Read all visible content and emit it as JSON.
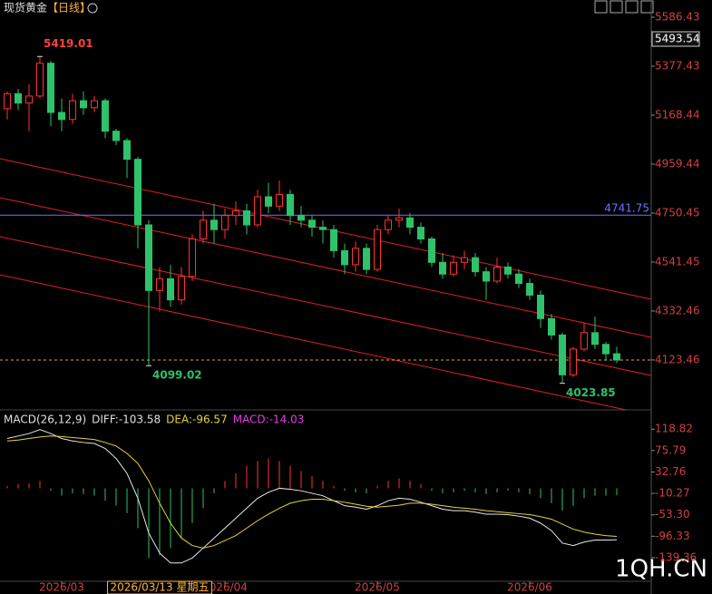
{
  "chart_data": [
    {
      "type": "candlestick",
      "title": "现货黄金",
      "period": "【日线】",
      "open": [
        5196,
        5260,
        5220,
        5250,
        5390,
        5180,
        5150,
        5230,
        5200,
        5230,
        5100,
        5060,
        4980,
        4700,
        4420,
        4470,
        4380,
        4480,
        4640,
        4720,
        4680,
        4740,
        4760,
        4700,
        4820,
        4780,
        4830,
        4740,
        4720,
        4690,
        4680,
        4590,
        4530,
        4600,
        4510,
        4680,
        4720,
        4730,
        4690,
        4640,
        4540,
        4490,
        4540,
        4560,
        4500,
        4460,
        4520,
        4490,
        4450,
        4400,
        4300,
        4230,
        4060,
        4170,
        4240,
        4190,
        4150
      ],
      "high": [
        5270,
        5280,
        5300,
        5419.01,
        5400,
        5240,
        5260,
        5270,
        5250,
        5240,
        5110,
        5070,
        4990,
        4720,
        4520,
        4530,
        4520,
        4660,
        4760,
        4790,
        4770,
        4800,
        4790,
        4850,
        4880,
        4890,
        4850,
        4780,
        4740,
        4720,
        4700,
        4620,
        4630,
        4620,
        4700,
        4740,
        4770,
        4750,
        4710,
        4650,
        4580,
        4570,
        4590,
        4580,
        4520,
        4560,
        4540,
        4510,
        4470,
        4420,
        4320,
        4240,
        4180,
        4280,
        4310,
        4200,
        4180
      ],
      "low": [
        5150,
        5190,
        5100,
        5240,
        5120,
        5100,
        5130,
        5170,
        5180,
        5070,
        5040,
        4900,
        4600,
        4099.02,
        4330,
        4350,
        4360,
        4460,
        4620,
        4620,
        4640,
        4700,
        4660,
        4690,
        4750,
        4760,
        4700,
        4690,
        4650,
        4620,
        4560,
        4490,
        4500,
        4490,
        4500,
        4660,
        4690,
        4660,
        4620,
        4520,
        4470,
        4480,
        4510,
        4480,
        4380,
        4450,
        4470,
        4430,
        4380,
        4260,
        4210,
        4023.85,
        4050,
        4160,
        4170,
        4120,
        4110
      ],
      "close": [
        5260,
        5220,
        5250,
        5390,
        5180,
        5150,
        5230,
        5200,
        5230,
        5100,
        5060,
        4980,
        4700,
        4420,
        4470,
        4380,
        4480,
        4640,
        4720,
        4680,
        4740,
        4760,
        4700,
        4820,
        4780,
        4830,
        4740,
        4720,
        4690,
        4680,
        4590,
        4530,
        4600,
        4510,
        4680,
        4720,
        4730,
        4690,
        4640,
        4540,
        4490,
        4540,
        4560,
        4500,
        4460,
        4520,
        4490,
        4450,
        4400,
        4300,
        4230,
        4060,
        4170,
        4240,
        4190,
        4150,
        4123
      ],
      "up_color": "#ff3232",
      "down_color": "#2ec26a",
      "ylim": [
        3918,
        5660
      ],
      "yticks": [
        5586.43,
        5377.43,
        5168.44,
        4959.44,
        4750.45,
        4541.45,
        4332.46,
        4123.46
      ],
      "annotations": [
        {
          "x": 3,
          "y": 5419.01,
          "color": "#ff4040"
        },
        {
          "x": 13,
          "y": 4099.02,
          "color": "#2ec26a"
        },
        {
          "x": 51,
          "y": 4023.85,
          "color": "#2ec26a"
        }
      ],
      "hline": {
        "value": 4741.75,
        "color": "#7070ff"
      },
      "price_marker": 5493.54,
      "last_price_line": 4123,
      "grid": false
    },
    {
      "type": "macd",
      "indicator_labels": [
        "MACD(26,12,9)",
        "DIFF:-103.58",
        "DEA:-96.57",
        "MACD:-14.03"
      ],
      "series": [
        {
          "name": "DIFF",
          "color": "#e8e8e8",
          "values": [
            100,
            105,
            110,
            118,
            110,
            100,
            95,
            92,
            90,
            80,
            60,
            30,
            -20,
            -90,
            -130,
            -150,
            -150,
            -140,
            -120,
            -100,
            -80,
            -60,
            -40,
            -20,
            -8,
            0,
            -2,
            -5,
            -10,
            -15,
            -25,
            -35,
            -38,
            -42,
            -35,
            -25,
            -20,
            -22,
            -28,
            -35,
            -42,
            -45,
            -45,
            -48,
            -52,
            -52,
            -53,
            -56,
            -60,
            -70,
            -85,
            -110,
            -115,
            -108,
            -104,
            -104,
            -103.58
          ]
        },
        {
          "name": "DEA",
          "color": "#e6d23a",
          "values": [
            95,
            97,
            100,
            103,
            105,
            104,
            102,
            100,
            98,
            92,
            85,
            70,
            50,
            15,
            -30,
            -70,
            -100,
            -115,
            -120,
            -115,
            -105,
            -95,
            -80,
            -65,
            -52,
            -40,
            -30,
            -25,
            -22,
            -22,
            -25,
            -28,
            -32,
            -36,
            -38,
            -36,
            -34,
            -30,
            -30,
            -32,
            -35,
            -38,
            -40,
            -42,
            -45,
            -47,
            -49,
            -51,
            -53,
            -57,
            -62,
            -72,
            -82,
            -88,
            -92,
            -95,
            -96.57
          ]
        }
      ],
      "histogram": [
        5,
        8,
        10,
        15,
        -5,
        -15,
        -10,
        -12,
        -15,
        -25,
        -35,
        -50,
        -80,
        -140,
        -135,
        -120,
        -100,
        -70,
        -40,
        -10,
        15,
        30,
        45,
        55,
        60,
        55,
        45,
        35,
        25,
        15,
        5,
        -5,
        -8,
        -10,
        5,
        15,
        20,
        15,
        8,
        -5,
        -10,
        -8,
        -5,
        -8,
        -12,
        -8,
        -5,
        -8,
        -12,
        -20,
        -30,
        -45,
        -35,
        -20,
        -15,
        -15,
        -14.03
      ],
      "pos_color": "#ff3232",
      "neg_color": "#2ec26a",
      "ylim": [
        -185,
        152
      ],
      "yticks": [
        118.82,
        75.79,
        32.76,
        -10.27,
        {
          "value": -53.3,
          "label": "-53.30"
        },
        -96.33,
        -139.36
      ],
      "xticks": [
        {
          "value": 5,
          "label": "2026/03"
        },
        {
          "value": 20,
          "label": "2026/04"
        },
        {
          "value": 34,
          "label": "2026/05"
        },
        {
          "value": 48,
          "label": "2026/06"
        }
      ],
      "crosshair_label": {
        "value": 14,
        "label": "2026/03/13 星期五"
      }
    }
  ],
  "watermark": "1QH.CN"
}
